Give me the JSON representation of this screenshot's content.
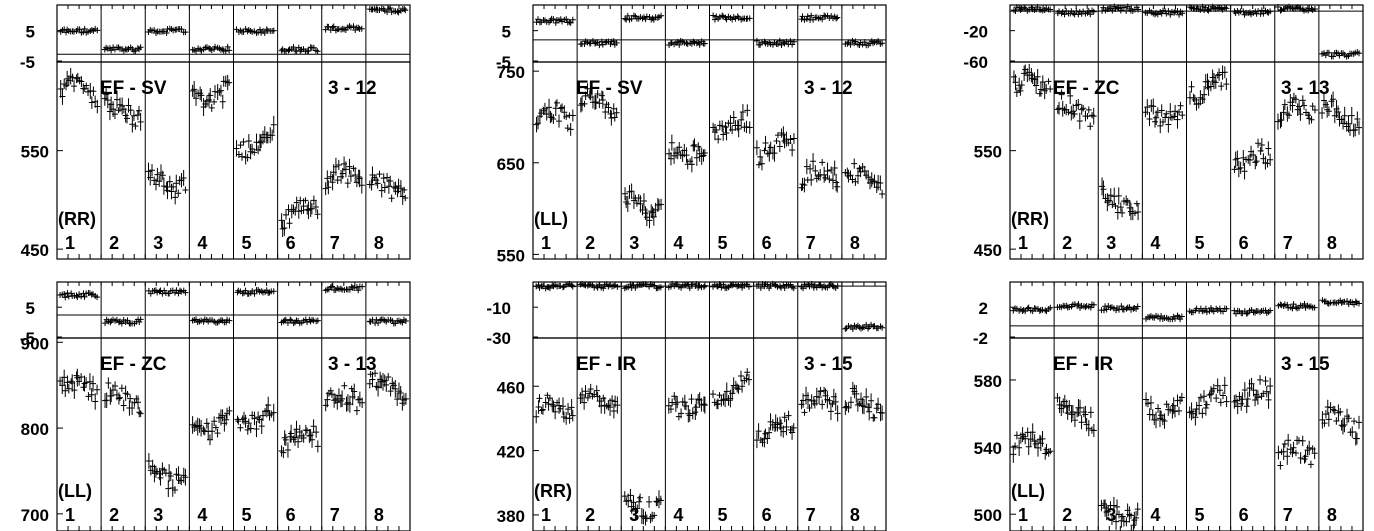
{
  "chart_data": [
    {
      "type": "scatter",
      "panel_title": "EF - SV",
      "run_label": "3 - 12",
      "polarization": "(RR)",
      "segments": [
        "1",
        "2",
        "3",
        "4",
        "5",
        "6",
        "7",
        "8"
      ],
      "top": {
        "ytick_labels": [
          "5",
          "-5"
        ],
        "ylim": [
          -8,
          14
        ],
        "zero_line": -5,
        "segment_levels": [
          4,
          -3,
          4,
          -3,
          4,
          -3,
          5,
          12
        ]
      },
      "main": {
        "ytick_labels": [
          "550",
          "450"
        ],
        "ytick_values": [
          550,
          450
        ],
        "ylim": [
          440,
          640
        ],
        "segment_levels": [
          610,
          590,
          520,
          610,
          560,
          485,
          520,
          510
        ]
      }
    },
    {
      "type": "scatter",
      "panel_title": "EF - SV",
      "run_label": "3 - 12",
      "polarization": "(LL)",
      "segments": [
        "1",
        "2",
        "3",
        "4",
        "5",
        "6",
        "7",
        "8"
      ],
      "top": {
        "ytick_labels": [
          "5",
          "-5"
        ],
        "ylim": [
          -8,
          10
        ],
        "zero_line": -1,
        "segment_levels": [
          5,
          -2,
          6,
          -2,
          6,
          -2,
          6,
          -2
        ]
      },
      "main": {
        "ytick_labels": [
          "750",
          "650",
          "550"
        ],
        "ytick_values": [
          750,
          650,
          550
        ],
        "ylim": [
          545,
          760
        ],
        "segment_levels": [
          700,
          715,
          605,
          665,
          690,
          665,
          635,
          630
        ]
      }
    },
    {
      "type": "scatter",
      "panel_title": "EF - ZC",
      "run_label": "3 - 13",
      "polarization": "(RR)",
      "segments": [
        "1",
        "2",
        "3",
        "4",
        "5",
        "6",
        "7",
        "8"
      ],
      "top": {
        "ytick_labels": [
          "-20",
          "-60"
        ],
        "ylim": [
          -70,
          5
        ],
        "zero_line": -3,
        "segment_levels": [
          0,
          -5,
          0,
          -5,
          0,
          -5,
          0,
          -60
        ]
      },
      "main": {
        "ytick_labels": [
          "550",
          "450"
        ],
        "ytick_values": [
          550,
          450
        ],
        "ylim": [
          440,
          640
        ],
        "segment_levels": [
          615,
          590,
          500,
          590,
          615,
          540,
          590,
          585
        ]
      }
    },
    {
      "type": "scatter",
      "panel_title": "EF - ZC",
      "run_label": "3 - 13",
      "polarization": "(LL)",
      "segments": [
        "1",
        "2",
        "3",
        "4",
        "5",
        "6",
        "7",
        "8"
      ],
      "top": {
        "ytick_labels": [
          "5",
          "-5"
        ],
        "ylim": [
          -8,
          9
        ],
        "zero_line": -1,
        "segment_levels": [
          5,
          -3,
          6,
          -3,
          6,
          -3,
          7,
          -3
        ]
      },
      "main": {
        "ytick_labels": [
          "900",
          "800",
          "700"
        ],
        "ytick_values": [
          900,
          800,
          700
        ],
        "ylim": [
          680,
          905
        ],
        "segment_levels": [
          845,
          835,
          745,
          805,
          810,
          785,
          830,
          845
        ]
      }
    },
    {
      "type": "scatter",
      "panel_title": "EF - IR",
      "run_label": "3 - 15",
      "polarization": "(RR)",
      "segments": [
        "1",
        "2",
        "3",
        "4",
        "5",
        "6",
        "7",
        "8"
      ],
      "top": {
        "ytick_labels": [
          "-10",
          "-30"
        ],
        "ylim": [
          -38,
          3
        ],
        "zero_line": 0,
        "segment_levels": [
          0,
          0,
          0,
          0,
          0,
          0,
          0,
          -30
        ]
      },
      "main": {
        "ytick_labels": [
          "460",
          "420",
          "380"
        ],
        "ytick_values": [
          460,
          420,
          380
        ],
        "ylim": [
          370,
          490
        ],
        "segment_levels": [
          445,
          450,
          388,
          450,
          458,
          432,
          448,
          448
        ]
      }
    },
    {
      "type": "scatter",
      "panel_title": "EF - IR",
      "run_label": "3 - 15",
      "polarization": "(LL)",
      "segments": [
        "1",
        "2",
        "3",
        "4",
        "5",
        "6",
        "7",
        "8"
      ],
      "top": {
        "ytick_labels": [
          "2",
          "-2"
        ],
        "ylim": [
          -2.6,
          3.4
        ],
        "zero_line": -1.3,
        "segment_levels": [
          0.5,
          0.8,
          0.6,
          -0.4,
          0.4,
          0.2,
          0.8,
          1.2
        ]
      },
      "main": {
        "ytick_labels": [
          "580",
          "540",
          "500"
        ],
        "ytick_values": [
          580,
          540,
          500
        ],
        "ylim": [
          490,
          605
        ],
        "segment_levels": [
          540,
          560,
          502,
          565,
          568,
          570,
          535,
          555
        ]
      }
    }
  ]
}
